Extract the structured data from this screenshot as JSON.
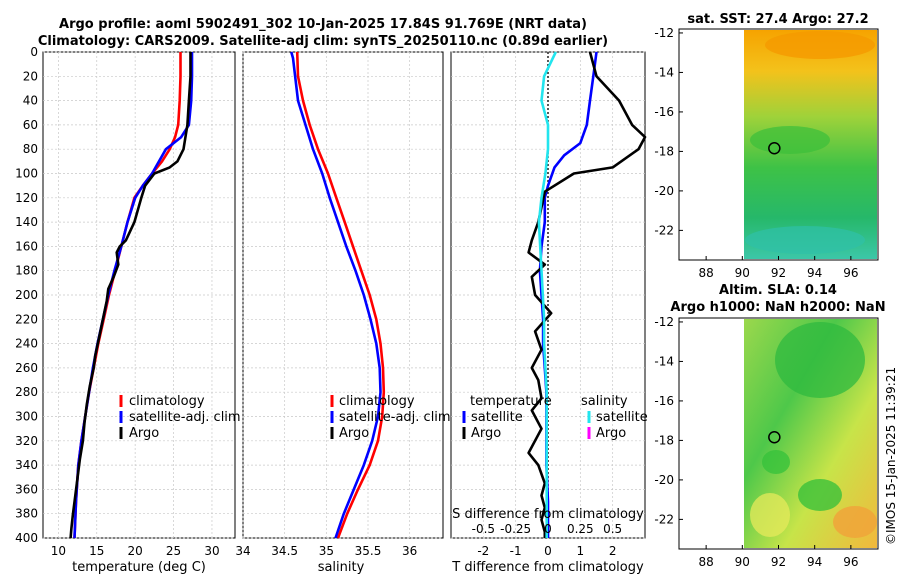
{
  "title": {
    "line1": "Argo profile: aoml 5902491_302 10-Jan-2025 17.84S 91.769E (NRT data)",
    "line2": "Climatology: CARS2009. Satellite-adj clim: synTS_20250110.nc (0.89d earlier)"
  },
  "colors": {
    "climatology": "#ff0000",
    "satellite": "#0000ff",
    "argo": "#000000",
    "salinity_satellite": "#22e5ee",
    "salinity_argo": "#ff00ff",
    "zero_line": "#222222"
  },
  "chart_data": [
    {
      "id": "temperature",
      "type": "line",
      "xlabel": "temperature (deg C)",
      "ylabel": "",
      "xlim": [
        8,
        33
      ],
      "ylim": [
        400,
        0
      ],
      "xticks": [
        10,
        15,
        20,
        25,
        30
      ],
      "yticks": [
        0,
        20,
        40,
        60,
        80,
        100,
        120,
        140,
        160,
        180,
        200,
        220,
        240,
        260,
        280,
        300,
        320,
        340,
        360,
        380,
        400
      ],
      "grid": true,
      "legend": {
        "position": "lower-right",
        "entries": [
          "climatology",
          "satellite-adj. clim",
          "Argo"
        ]
      },
      "series": [
        {
          "name": "climatology",
          "color_key": "climatology",
          "x": [
            25.9,
            25.9,
            25.8,
            25.6,
            25.2,
            24.5,
            23.5,
            22.2,
            21.0,
            19.9,
            19.0,
            18.2,
            17.4,
            16.6,
            15.9,
            15.2,
            14.6,
            14.0,
            13.5,
            13.0,
            12.6,
            12.3,
            12.1
          ],
          "y": [
            0,
            20,
            40,
            60,
            70,
            80,
            90,
            100,
            110,
            120,
            140,
            160,
            180,
            200,
            220,
            240,
            260,
            280,
            300,
            320,
            340,
            370,
            400
          ]
        },
        {
          "name": "satellite-adj. clim",
          "color_key": "satellite",
          "x": [
            27.4,
            27.4,
            27.3,
            27.0,
            26.0,
            24.0,
            22.2,
            21.0,
            20.0,
            19.0,
            18.2,
            17.3,
            16.5,
            15.8,
            15.1,
            14.5,
            14.0,
            13.5,
            13.0,
            12.6,
            12.3,
            12.1
          ],
          "y": [
            0,
            20,
            40,
            60,
            70,
            80,
            100,
            110,
            120,
            140,
            160,
            180,
            200,
            220,
            240,
            260,
            280,
            300,
            320,
            340,
            370,
            400
          ]
        },
        {
          "name": "Argo",
          "color_key": "argo",
          "x": [
            27.2,
            27.2,
            27.0,
            26.8,
            26.3,
            25.5,
            24.5,
            22.5,
            21.3,
            20.8,
            19.9,
            18.8,
            18.0,
            17.6,
            17.8,
            17.2,
            16.5,
            16.3,
            15.8,
            15.3,
            14.8,
            14.6,
            14.1,
            13.7,
            13.4,
            13.2,
            12.8,
            12.5,
            12.2,
            11.9,
            11.7,
            11.6
          ],
          "y": [
            0,
            20,
            40,
            60,
            80,
            90,
            95,
            100,
            110,
            120,
            140,
            155,
            160,
            165,
            175,
            185,
            195,
            205,
            220,
            235,
            250,
            260,
            275,
            290,
            305,
            320,
            335,
            350,
            365,
            380,
            392,
            400
          ]
        }
      ]
    },
    {
      "id": "salinity",
      "type": "line",
      "xlabel": "salinity",
      "ylabel": "",
      "xlim": [
        34,
        36.4
      ],
      "ylim": [
        400,
        0
      ],
      "xticks": [
        34,
        34.5,
        35,
        35.5,
        36
      ],
      "grid": true,
      "legend": {
        "position": "lower-right",
        "entries": [
          "climatology",
          "satellite-adj. clim",
          "Argo"
        ]
      },
      "series": [
        {
          "name": "climatology",
          "color_key": "climatology",
          "x": [
            34.65,
            34.66,
            34.72,
            34.8,
            34.9,
            35.02,
            35.12,
            35.22,
            35.32,
            35.42,
            35.52,
            35.6,
            35.65,
            35.68,
            35.69,
            35.67,
            35.62,
            35.52,
            35.38,
            35.25,
            35.14
          ],
          "y": [
            0,
            20,
            40,
            60,
            80,
            100,
            120,
            140,
            160,
            180,
            200,
            220,
            240,
            260,
            280,
            300,
            320,
            340,
            360,
            380,
            400
          ]
        },
        {
          "name": "satellite-adj. clim",
          "color_key": "satellite",
          "x": [
            34.58,
            34.6,
            34.66,
            34.75,
            34.84,
            34.95,
            35.04,
            35.14,
            35.24,
            35.35,
            35.45,
            35.53,
            35.6,
            35.64,
            35.65,
            35.62,
            35.55,
            35.45,
            35.33,
            35.21,
            35.11
          ],
          "y": [
            0,
            5,
            40,
            60,
            80,
            100,
            120,
            140,
            160,
            180,
            200,
            220,
            240,
            260,
            280,
            300,
            320,
            340,
            360,
            380,
            400
          ]
        }
      ]
    },
    {
      "id": "difference",
      "type": "line",
      "xlabel": "T difference from climatology",
      "top_xlabel": "S difference from climatology",
      "xlim": [
        -3,
        3
      ],
      "top_xlim": [
        -0.75,
        0.75
      ],
      "ylim": [
        400,
        0
      ],
      "xticks": [
        -2,
        -1,
        0,
        1,
        2
      ],
      "top_xticks": [
        -0.5,
        -0.25,
        0,
        0.25,
        0.5
      ],
      "top_xtick_labels": [
        "-0.5",
        "-0.25",
        "0",
        "0.25",
        "0.5"
      ],
      "grid": true,
      "legend": {
        "position": "lower-center",
        "temperature_title": "temperature",
        "salinity_title": "salinity",
        "temperature_entries": [
          "satellite",
          "Argo"
        ],
        "salinity_entries": [
          "satellite",
          "Argo"
        ]
      },
      "series": [
        {
          "name": "T satellite",
          "color_key": "satellite",
          "x": [
            1.5,
            1.4,
            1.3,
            1.2,
            1.0,
            0.5,
            0.2,
            0,
            -0.1,
            -0.1,
            -0.2,
            -0.25,
            -0.2,
            -0.15,
            -0.15,
            -0.1,
            -0.05,
            -0.05,
            -0.05,
            -0.05,
            0,
            0
          ],
          "y": [
            0,
            20,
            40,
            60,
            75,
            85,
            95,
            110,
            120,
            140,
            160,
            180,
            200,
            220,
            240,
            260,
            280,
            300,
            320,
            340,
            370,
            400
          ]
        },
        {
          "name": "T Argo",
          "color_key": "argo",
          "x": [
            1.3,
            1.5,
            2.2,
            2.6,
            3.0,
            2.8,
            2.0,
            0.8,
            -0.1,
            -0.3,
            -0.5,
            -0.6,
            -0.1,
            -0.5,
            -0.4,
            0.1,
            -0.4,
            -0.2,
            -0.5,
            -0.3,
            -0.2,
            -0.5,
            -0.2,
            -0.6,
            -0.3,
            -0.1,
            -0.2,
            -0.1,
            -0.2,
            -0.1,
            -0.1
          ],
          "y": [
            0,
            20,
            40,
            60,
            70,
            80,
            95,
            100,
            115,
            140,
            155,
            165,
            175,
            185,
            200,
            215,
            230,
            245,
            260,
            270,
            285,
            295,
            310,
            330,
            340,
            355,
            365,
            375,
            385,
            395,
            400
          ]
        },
        {
          "name": "S satellite",
          "color_key": "salinity_satellite",
          "x": [
            0.06,
            -0.03,
            -0.05,
            0.0,
            0.0,
            -0.02,
            -0.05,
            -0.07,
            -0.06,
            -0.05,
            -0.04,
            -0.03,
            -0.03,
            -0.02,
            -0.01,
            -0.01,
            -0.01,
            -0.01,
            -0.01,
            -0.01
          ],
          "y": [
            0,
            20,
            40,
            60,
            80,
            100,
            120,
            140,
            160,
            180,
            200,
            220,
            240,
            260,
            280,
            300,
            320,
            340,
            370,
            400
          ]
        }
      ]
    },
    {
      "id": "sst_map",
      "type": "heatmap",
      "title": "sat. SST: 27.4 Argo: 27.2",
      "xlim": [
        86.5,
        97.5
      ],
      "ylim": [
        -23.5,
        -11.8
      ],
      "xticks": [
        88,
        90,
        92,
        94,
        96
      ],
      "yticks": [
        -12,
        -14,
        -16,
        -18,
        -20,
        -22
      ],
      "data_xlim": [
        90,
        97.3
      ],
      "argo_position": {
        "lon": 91.77,
        "lat": -17.84
      }
    },
    {
      "id": "sla_map",
      "type": "heatmap",
      "title_line1": "Altim. SLA: 0.14",
      "title_line2": "Argo h1000: NaN h2000: NaN",
      "xlim": [
        86.5,
        97.5
      ],
      "ylim": [
        -23.5,
        -11.8
      ],
      "xticks": [
        88,
        90,
        92,
        94,
        96
      ],
      "yticks": [
        -12,
        -14,
        -16,
        -18,
        -20,
        -22
      ],
      "data_xlim": [
        90,
        97.3
      ],
      "argo_position": {
        "lon": 91.77,
        "lat": -17.84
      }
    }
  ],
  "footer": {
    "stamp": "©IMOS 15-Jan-2025 11:39:21"
  }
}
